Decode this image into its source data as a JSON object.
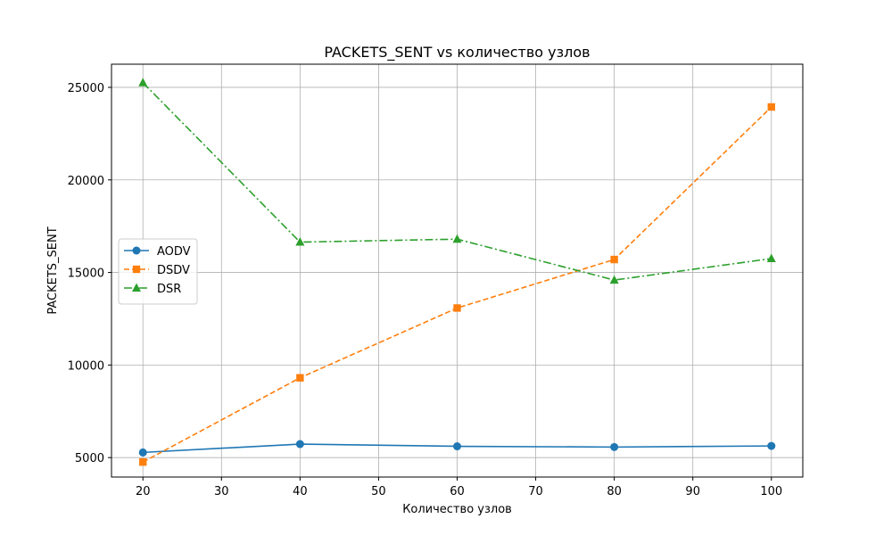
{
  "chart_data": {
    "type": "line",
    "title": "PACKETS_SENT vs количество узлов",
    "xlabel": "Количество узлов",
    "ylabel": "PACKETS_SENT",
    "x": [
      20,
      40,
      60,
      80,
      100
    ],
    "xlim": [
      16,
      104
    ],
    "ylim": [
      3950,
      26250
    ],
    "xticks": [
      20,
      30,
      40,
      50,
      60,
      70,
      80,
      90,
      100
    ],
    "yticks": [
      5000,
      10000,
      15000,
      20000,
      25000
    ],
    "grid": true,
    "legend_position": "center-left",
    "series": [
      {
        "name": "AODV",
        "values": [
          5280,
          5730,
          5610,
          5570,
          5630
        ],
        "color": "#1f77b4",
        "marker": "circle",
        "dash": "solid"
      },
      {
        "name": "DSDV",
        "values": [
          4760,
          9310,
          13080,
          15700,
          23940
        ],
        "color": "#ff7f0e",
        "marker": "square",
        "dash": "dashed"
      },
      {
        "name": "DSR",
        "values": [
          25250,
          16640,
          16800,
          14590,
          15750
        ],
        "color": "#2ca02c",
        "marker": "triangle",
        "dash": "dashdot"
      }
    ]
  }
}
